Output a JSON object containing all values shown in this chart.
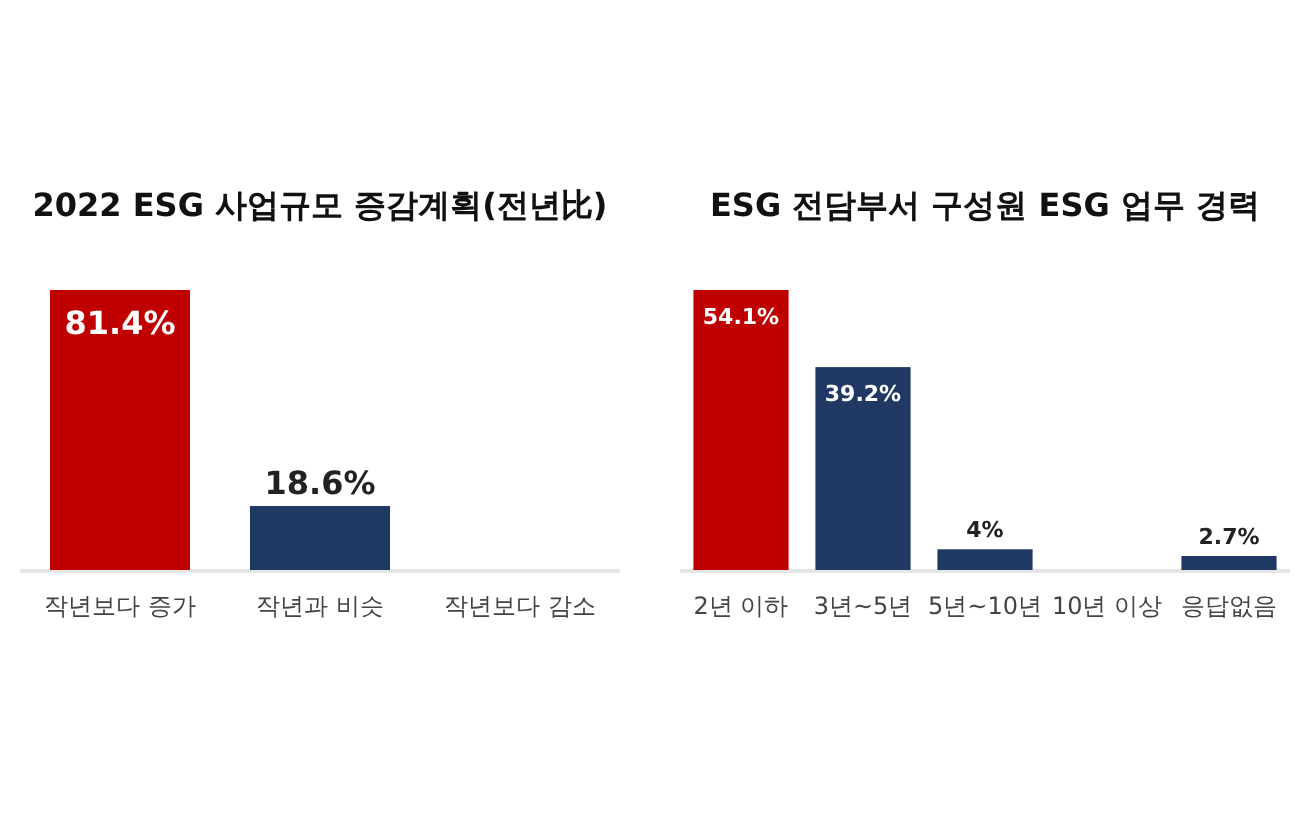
{
  "chart_data": [
    {
      "type": "bar",
      "title": "2022 ESG 사업규모 증감계획(전년比)",
      "categories": [
        "작년보다 증가",
        "작년과 비슷",
        "작년보다 감소"
      ],
      "values": [
        81.4,
        18.6,
        null
      ],
      "colors": [
        "#c00000",
        "#1f3864",
        "#1f3864"
      ],
      "value_labels": [
        "81.4%",
        "18.6%",
        null
      ]
    },
    {
      "type": "bar",
      "title": "ESG 전담부서 구성원 ESG 업무 경력",
      "categories": [
        "2년 이하",
        "3년~5년",
        "5년~10년",
        "10년 이상",
        "응답없음"
      ],
      "values": [
        54.1,
        39.2,
        4,
        null,
        2.7
      ],
      "colors": [
        "#c00000",
        "#1f3864",
        "#1f3864",
        "#1f3864",
        "#1f3864"
      ],
      "value_labels": [
        "54.1%",
        "39.2%",
        "4%",
        null,
        "2.7%"
      ]
    }
  ]
}
